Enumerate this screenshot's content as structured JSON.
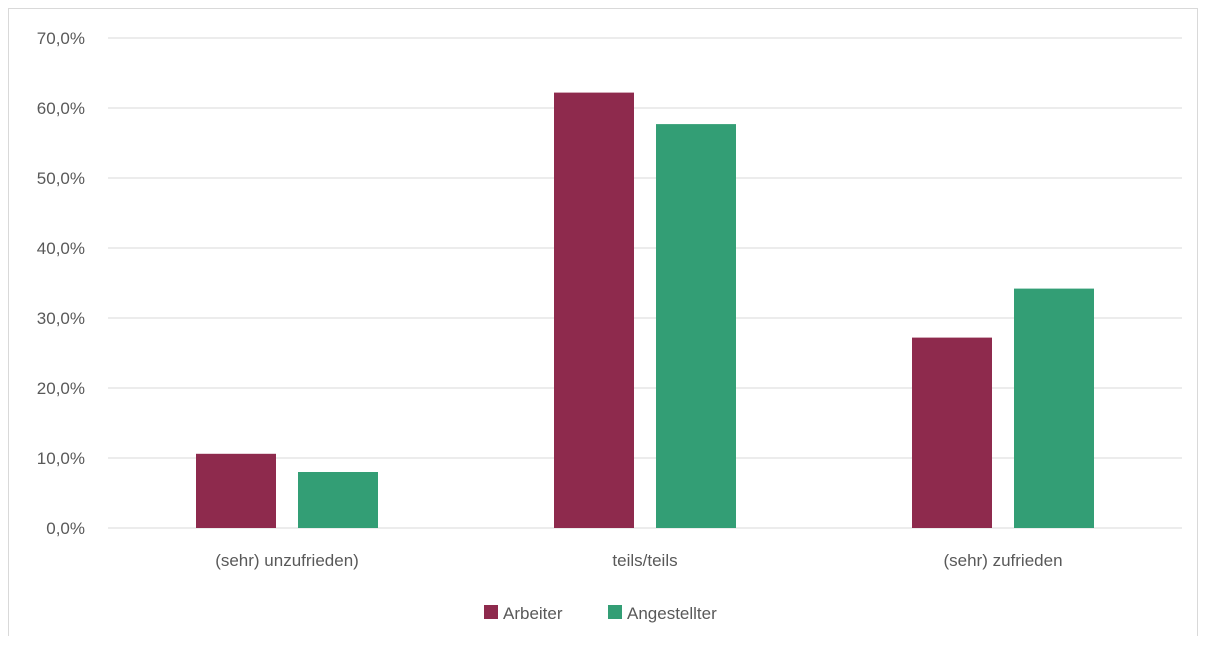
{
  "chart_data": {
    "type": "bar",
    "categories": [
      "(sehr) unzufrieden)",
      "teils/teils",
      "(sehr) zufrieden"
    ],
    "series": [
      {
        "name": "Arbeiter",
        "values": [
          10.6,
          62.2,
          27.2
        ],
        "color": "#8e2a4d"
      },
      {
        "name": "Angestellter",
        "values": [
          8.0,
          57.7,
          34.2
        ],
        "color": "#339e75"
      }
    ],
    "ylim": [
      0,
      70
    ],
    "y_ticks": [
      0,
      10,
      20,
      30,
      40,
      50,
      60,
      70
    ],
    "y_tick_labels": [
      "0,0%",
      "10,0%",
      "20,0%",
      "30,0%",
      "40,0%",
      "50,0%",
      "60,0%",
      "70,0%"
    ],
    "grid": true,
    "legend_position": "bottom",
    "colors": {
      "gridline": "#d9d9d9",
      "text": "#595959"
    }
  }
}
